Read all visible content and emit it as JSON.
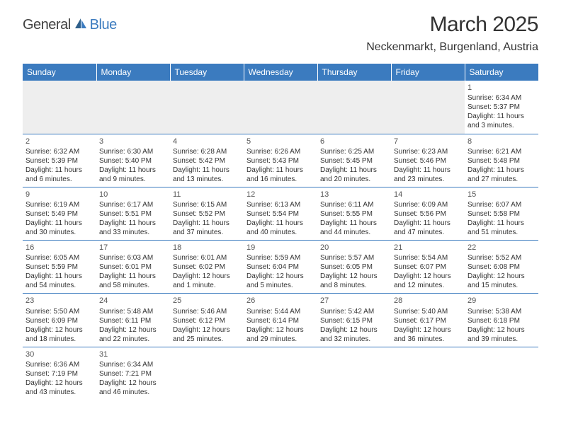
{
  "logo": {
    "text1": "General",
    "text2": "Blue"
  },
  "title": "March 2025",
  "location": "Neckenmarkt, Burgenland, Austria",
  "colors": {
    "header_bg": "#3b7bbf",
    "header_text": "#ffffff",
    "border": "#3b7bbf",
    "body_text": "#333333",
    "daynum": "#555555",
    "blank_bg": "#eeeeee"
  },
  "weekdays": [
    "Sunday",
    "Monday",
    "Tuesday",
    "Wednesday",
    "Thursday",
    "Friday",
    "Saturday"
  ],
  "weeks": [
    [
      null,
      null,
      null,
      null,
      null,
      null,
      {
        "n": "1",
        "sr": "Sunrise: 6:34 AM",
        "ss": "Sunset: 5:37 PM",
        "dl": "Daylight: 11 hours and 3 minutes."
      }
    ],
    [
      {
        "n": "2",
        "sr": "Sunrise: 6:32 AM",
        "ss": "Sunset: 5:39 PM",
        "dl": "Daylight: 11 hours and 6 minutes."
      },
      {
        "n": "3",
        "sr": "Sunrise: 6:30 AM",
        "ss": "Sunset: 5:40 PM",
        "dl": "Daylight: 11 hours and 9 minutes."
      },
      {
        "n": "4",
        "sr": "Sunrise: 6:28 AM",
        "ss": "Sunset: 5:42 PM",
        "dl": "Daylight: 11 hours and 13 minutes."
      },
      {
        "n": "5",
        "sr": "Sunrise: 6:26 AM",
        "ss": "Sunset: 5:43 PM",
        "dl": "Daylight: 11 hours and 16 minutes."
      },
      {
        "n": "6",
        "sr": "Sunrise: 6:25 AM",
        "ss": "Sunset: 5:45 PM",
        "dl": "Daylight: 11 hours and 20 minutes."
      },
      {
        "n": "7",
        "sr": "Sunrise: 6:23 AM",
        "ss": "Sunset: 5:46 PM",
        "dl": "Daylight: 11 hours and 23 minutes."
      },
      {
        "n": "8",
        "sr": "Sunrise: 6:21 AM",
        "ss": "Sunset: 5:48 PM",
        "dl": "Daylight: 11 hours and 27 minutes."
      }
    ],
    [
      {
        "n": "9",
        "sr": "Sunrise: 6:19 AM",
        "ss": "Sunset: 5:49 PM",
        "dl": "Daylight: 11 hours and 30 minutes."
      },
      {
        "n": "10",
        "sr": "Sunrise: 6:17 AM",
        "ss": "Sunset: 5:51 PM",
        "dl": "Daylight: 11 hours and 33 minutes."
      },
      {
        "n": "11",
        "sr": "Sunrise: 6:15 AM",
        "ss": "Sunset: 5:52 PM",
        "dl": "Daylight: 11 hours and 37 minutes."
      },
      {
        "n": "12",
        "sr": "Sunrise: 6:13 AM",
        "ss": "Sunset: 5:54 PM",
        "dl": "Daylight: 11 hours and 40 minutes."
      },
      {
        "n": "13",
        "sr": "Sunrise: 6:11 AM",
        "ss": "Sunset: 5:55 PM",
        "dl": "Daylight: 11 hours and 44 minutes."
      },
      {
        "n": "14",
        "sr": "Sunrise: 6:09 AM",
        "ss": "Sunset: 5:56 PM",
        "dl": "Daylight: 11 hours and 47 minutes."
      },
      {
        "n": "15",
        "sr": "Sunrise: 6:07 AM",
        "ss": "Sunset: 5:58 PM",
        "dl": "Daylight: 11 hours and 51 minutes."
      }
    ],
    [
      {
        "n": "16",
        "sr": "Sunrise: 6:05 AM",
        "ss": "Sunset: 5:59 PM",
        "dl": "Daylight: 11 hours and 54 minutes."
      },
      {
        "n": "17",
        "sr": "Sunrise: 6:03 AM",
        "ss": "Sunset: 6:01 PM",
        "dl": "Daylight: 11 hours and 58 minutes."
      },
      {
        "n": "18",
        "sr": "Sunrise: 6:01 AM",
        "ss": "Sunset: 6:02 PM",
        "dl": "Daylight: 12 hours and 1 minute."
      },
      {
        "n": "19",
        "sr": "Sunrise: 5:59 AM",
        "ss": "Sunset: 6:04 PM",
        "dl": "Daylight: 12 hours and 5 minutes."
      },
      {
        "n": "20",
        "sr": "Sunrise: 5:57 AM",
        "ss": "Sunset: 6:05 PM",
        "dl": "Daylight: 12 hours and 8 minutes."
      },
      {
        "n": "21",
        "sr": "Sunrise: 5:54 AM",
        "ss": "Sunset: 6:07 PM",
        "dl": "Daylight: 12 hours and 12 minutes."
      },
      {
        "n": "22",
        "sr": "Sunrise: 5:52 AM",
        "ss": "Sunset: 6:08 PM",
        "dl": "Daylight: 12 hours and 15 minutes."
      }
    ],
    [
      {
        "n": "23",
        "sr": "Sunrise: 5:50 AM",
        "ss": "Sunset: 6:09 PM",
        "dl": "Daylight: 12 hours and 18 minutes."
      },
      {
        "n": "24",
        "sr": "Sunrise: 5:48 AM",
        "ss": "Sunset: 6:11 PM",
        "dl": "Daylight: 12 hours and 22 minutes."
      },
      {
        "n": "25",
        "sr": "Sunrise: 5:46 AM",
        "ss": "Sunset: 6:12 PM",
        "dl": "Daylight: 12 hours and 25 minutes."
      },
      {
        "n": "26",
        "sr": "Sunrise: 5:44 AM",
        "ss": "Sunset: 6:14 PM",
        "dl": "Daylight: 12 hours and 29 minutes."
      },
      {
        "n": "27",
        "sr": "Sunrise: 5:42 AM",
        "ss": "Sunset: 6:15 PM",
        "dl": "Daylight: 12 hours and 32 minutes."
      },
      {
        "n": "28",
        "sr": "Sunrise: 5:40 AM",
        "ss": "Sunset: 6:17 PM",
        "dl": "Daylight: 12 hours and 36 minutes."
      },
      {
        "n": "29",
        "sr": "Sunrise: 5:38 AM",
        "ss": "Sunset: 6:18 PM",
        "dl": "Daylight: 12 hours and 39 minutes."
      }
    ],
    [
      {
        "n": "30",
        "sr": "Sunrise: 6:36 AM",
        "ss": "Sunset: 7:19 PM",
        "dl": "Daylight: 12 hours and 43 minutes."
      },
      {
        "n": "31",
        "sr": "Sunrise: 6:34 AM",
        "ss": "Sunset: 7:21 PM",
        "dl": "Daylight: 12 hours and 46 minutes."
      },
      null,
      null,
      null,
      null,
      null
    ]
  ]
}
